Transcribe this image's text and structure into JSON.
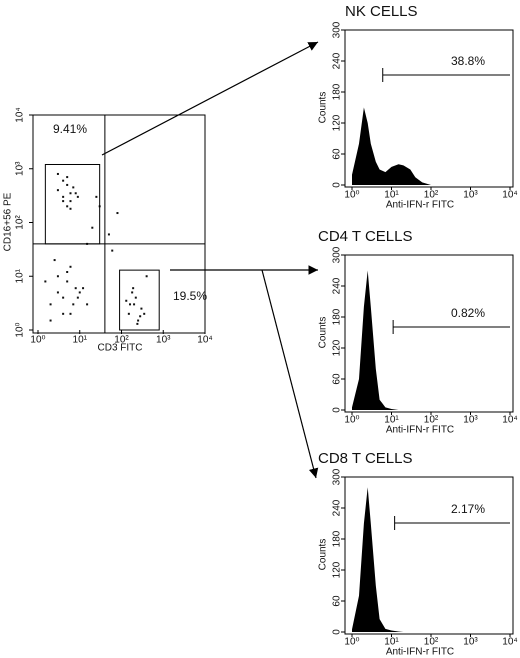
{
  "chart_data": [
    {
      "type": "scatter",
      "xlabel": "CD3 FITC",
      "ylabel": "CD16+56 PE",
      "log_x": true,
      "log_y": true,
      "color": "#111111",
      "x": [
        3,
        4,
        5,
        6,
        8,
        4,
        5,
        7,
        3,
        6,
        9,
        5,
        4,
        6,
        2,
        3,
        4,
        5,
        6,
        8,
        10,
        3,
        5,
        7,
        2,
        4,
        6,
        9,
        12,
        15,
        1.5,
        2.5,
        150,
        200,
        250,
        180,
        300,
        220,
        160,
        280,
        350,
        190,
        240,
        130,
        30,
        50,
        20,
        400,
        60,
        15,
        80,
        25
      ],
      "y": [
        400,
        300,
        500,
        250,
        350,
        600,
        200,
        450,
        800,
        350,
        300,
        700,
        250,
        180,
        3,
        5,
        4,
        8,
        2,
        6,
        5,
        10,
        12,
        3,
        1.5,
        2,
        15,
        4,
        6,
        3,
        8,
        20,
        2,
        3,
        1.5,
        5,
        2.5,
        4,
        3,
        1.8,
        2,
        6,
        1.3,
        3.5,
        200,
        60,
        80,
        10,
        30,
        40,
        150,
        300
      ],
      "xlim": [
        1,
        10000
      ],
      "ylim": [
        1,
        10000
      ],
      "xticks": [
        {
          "value": 1,
          "label": "10⁰"
        },
        {
          "value": 10,
          "label": "10¹"
        },
        {
          "value": 100,
          "label": "10²"
        },
        {
          "value": 1000,
          "label": "10³"
        },
        {
          "value": 10000,
          "label": "10⁴"
        }
      ],
      "yticks": [
        {
          "value": 1,
          "label": "10⁰"
        },
        {
          "value": 10,
          "label": "10¹"
        },
        {
          "value": 100,
          "label": "10²"
        },
        {
          "value": 1000,
          "label": "10³"
        },
        {
          "value": 10000,
          "label": "10⁴"
        }
      ],
      "quadrant": [
        40,
        40
      ],
      "gates": [
        {
          "x": [
            1.5,
            30
          ],
          "y": [
            40,
            1200
          ],
          "label": "9.41%"
        },
        {
          "x": [
            90,
            800
          ],
          "y": [
            1,
            13
          ],
          "label": "19.5%"
        }
      ]
    },
    {
      "type": "histogram",
      "title": "NK CELLS",
      "xlabel": "Anti-IFN-r FITC",
      "ylabel": "Counts",
      "log_x": true,
      "color": "#000000",
      "x": [
        1,
        1.5,
        2,
        2.5,
        3,
        4,
        5,
        7,
        10,
        15,
        20,
        30,
        40,
        60,
        100
      ],
      "values": [
        20,
        80,
        150,
        120,
        80,
        45,
        30,
        25,
        35,
        40,
        38,
        30,
        15,
        5,
        0
      ],
      "xlim": [
        1,
        10000
      ],
      "ylim": [
        0,
        300
      ],
      "xticks": [
        {
          "value": 1,
          "label": "10⁰"
        },
        {
          "value": 10,
          "label": "10¹"
        },
        {
          "value": 100,
          "label": "10²"
        },
        {
          "value": 1000,
          "label": "10³"
        },
        {
          "value": 10000,
          "label": "10⁴"
        }
      ],
      "yticks": [
        0,
        60,
        120,
        180,
        240,
        300
      ],
      "gate": [
        6,
        10000
      ],
      "annotation": "38.8%"
    },
    {
      "type": "histogram",
      "title": "CD4  T CELLS",
      "xlabel": "Anti-IFN-r FITC",
      "ylabel": "Counts",
      "log_x": true,
      "color": "#000000",
      "x": [
        1,
        1.5,
        2,
        2.5,
        3,
        4,
        5,
        7,
        10,
        15,
        20,
        30,
        40,
        60,
        100
      ],
      "values": [
        5,
        60,
        200,
        270,
        200,
        80,
        20,
        5,
        2,
        0,
        0,
        0,
        0,
        0,
        0
      ],
      "xlim": [
        1,
        10000
      ],
      "ylim": [
        0,
        300
      ],
      "xticks": [
        {
          "value": 1,
          "label": "10⁰"
        },
        {
          "value": 10,
          "label": "10¹"
        },
        {
          "value": 100,
          "label": "10²"
        },
        {
          "value": 1000,
          "label": "10³"
        },
        {
          "value": 10000,
          "label": "10⁴"
        }
      ],
      "yticks": [
        0,
        60,
        120,
        180,
        240,
        300
      ],
      "gate": [
        11,
        10000
      ],
      "annotation": "0.82%"
    },
    {
      "type": "histogram",
      "title": "CD8 T CELLS",
      "xlabel": "Anti-IFN-r FITC",
      "ylabel": "Counts",
      "log_x": true,
      "color": "#000000",
      "x": [
        1,
        1.5,
        2,
        2.5,
        3,
        4,
        5,
        7,
        10,
        15,
        20,
        30,
        40,
        60,
        100
      ],
      "values": [
        5,
        70,
        210,
        280,
        210,
        90,
        25,
        6,
        3,
        1,
        0,
        0,
        0,
        0,
        0
      ],
      "xlim": [
        1,
        10000
      ],
      "ylim": [
        0,
        300
      ],
      "xticks": [
        {
          "value": 1,
          "label": "10⁰"
        },
        {
          "value": 10,
          "label": "10¹"
        },
        {
          "value": 100,
          "label": "10²"
        },
        {
          "value": 1000,
          "label": "10³"
        },
        {
          "value": 10000,
          "label": "10⁴"
        }
      ],
      "yticks": [
        0,
        60,
        120,
        180,
        240,
        300
      ],
      "gate": [
        12,
        10000
      ],
      "annotation": "2.17%"
    }
  ]
}
